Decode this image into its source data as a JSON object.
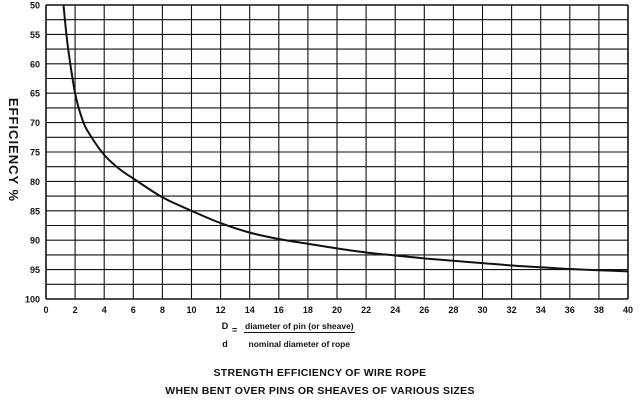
{
  "chart_data": {
    "type": "line",
    "title": "STRENGTH EFFICIENCY OF WIRE ROPE",
    "subtitle": "WHEN BENT OVER PINS OR SHEAVES OF VARIOUS SIZES",
    "ylabel": "EFFICIENCY %",
    "xlabel": {
      "lhs_top": "D",
      "lhs_bottom": "d",
      "equals": "=",
      "numerator": "diameter of pin (or sheave)",
      "denominator": "nominal diameter of rope"
    },
    "xlim": [
      0,
      40
    ],
    "ylim": [
      50,
      100
    ],
    "y_inverted": true,
    "grid": true,
    "x_ticks": [
      "0",
      "2",
      "4",
      "6",
      "8",
      "10",
      "12",
      "14",
      "16",
      "18",
      "20",
      "22",
      "24",
      "26",
      "28",
      "30",
      "32",
      "34",
      "36",
      "38",
      "40"
    ],
    "y_ticks": [
      "50",
      "55",
      "60",
      "65",
      "70",
      "75",
      "80",
      "85",
      "90",
      "95",
      "100"
    ],
    "series": [
      {
        "x": [
          1.2,
          1.5,
          2,
          2.5,
          3,
          4,
          5,
          6,
          8,
          10,
          12,
          14,
          16,
          18,
          20,
          22,
          24,
          26,
          28,
          30,
          32,
          34,
          36,
          38,
          40
        ],
        "y": [
          50,
          57,
          65,
          69.5,
          72,
          75.5,
          77.8,
          79.5,
          82.7,
          85,
          87.1,
          88.7,
          89.8,
          90.6,
          91.4,
          92.1,
          92.6,
          93.1,
          93.5,
          93.9,
          94.3,
          94.6,
          94.9,
          95.1,
          95.3
        ],
        "color": "#111111"
      }
    ]
  }
}
